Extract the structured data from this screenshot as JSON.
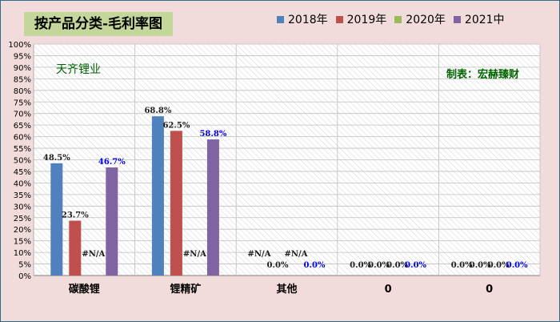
{
  "title": "按产品分类-毛利率图",
  "annotations": {
    "company": "天齐锂业",
    "credit": "制表：宏赫臻财"
  },
  "chart_data": {
    "type": "bar",
    "categories": [
      "碳酸锂",
      "锂精矿",
      "其他",
      "0",
      "0"
    ],
    "ylim": [
      0,
      100
    ],
    "yticks": [
      "0%",
      "5%",
      "10%",
      "15%",
      "20%",
      "25%",
      "30%",
      "35%",
      "40%",
      "45%",
      "50%",
      "55%",
      "60%",
      "65%",
      "70%",
      "75%",
      "80%",
      "85%",
      "90%",
      "95%",
      "100%"
    ],
    "grid": true,
    "legend_position": "top-right",
    "series": [
      {
        "name": "2018年",
        "color": "#4f81bd",
        "label_color": "#1f1f1f",
        "values": [
          48.5,
          68.8,
          null,
          0,
          0
        ],
        "labels": [
          "48.5%",
          "68.8%",
          "#N/A",
          "0.0%",
          "0.0%"
        ]
      },
      {
        "name": "2019年",
        "color": "#c0504d",
        "label_color": "#1f1f1f",
        "values": [
          23.7,
          62.5,
          0,
          0,
          0
        ],
        "labels": [
          "23.7%",
          "62.5%",
          "0.0%",
          "0.0%",
          "0.0%"
        ]
      },
      {
        "name": "2020年",
        "color": "#9bbb59",
        "label_color": "#1f1f1f",
        "values": [
          null,
          null,
          null,
          0,
          0
        ],
        "labels": [
          "#N/A",
          "#N/A",
          "#N/A",
          "0.0%",
          "0.0%"
        ]
      },
      {
        "name": "2021中",
        "color": "#8064a2",
        "label_color": "#0000ee",
        "values": [
          46.7,
          58.8,
          0,
          0,
          0
        ],
        "labels": [
          "46.7%",
          "58.8%",
          "0.0%",
          "0.0%",
          "0.0%"
        ]
      }
    ]
  }
}
